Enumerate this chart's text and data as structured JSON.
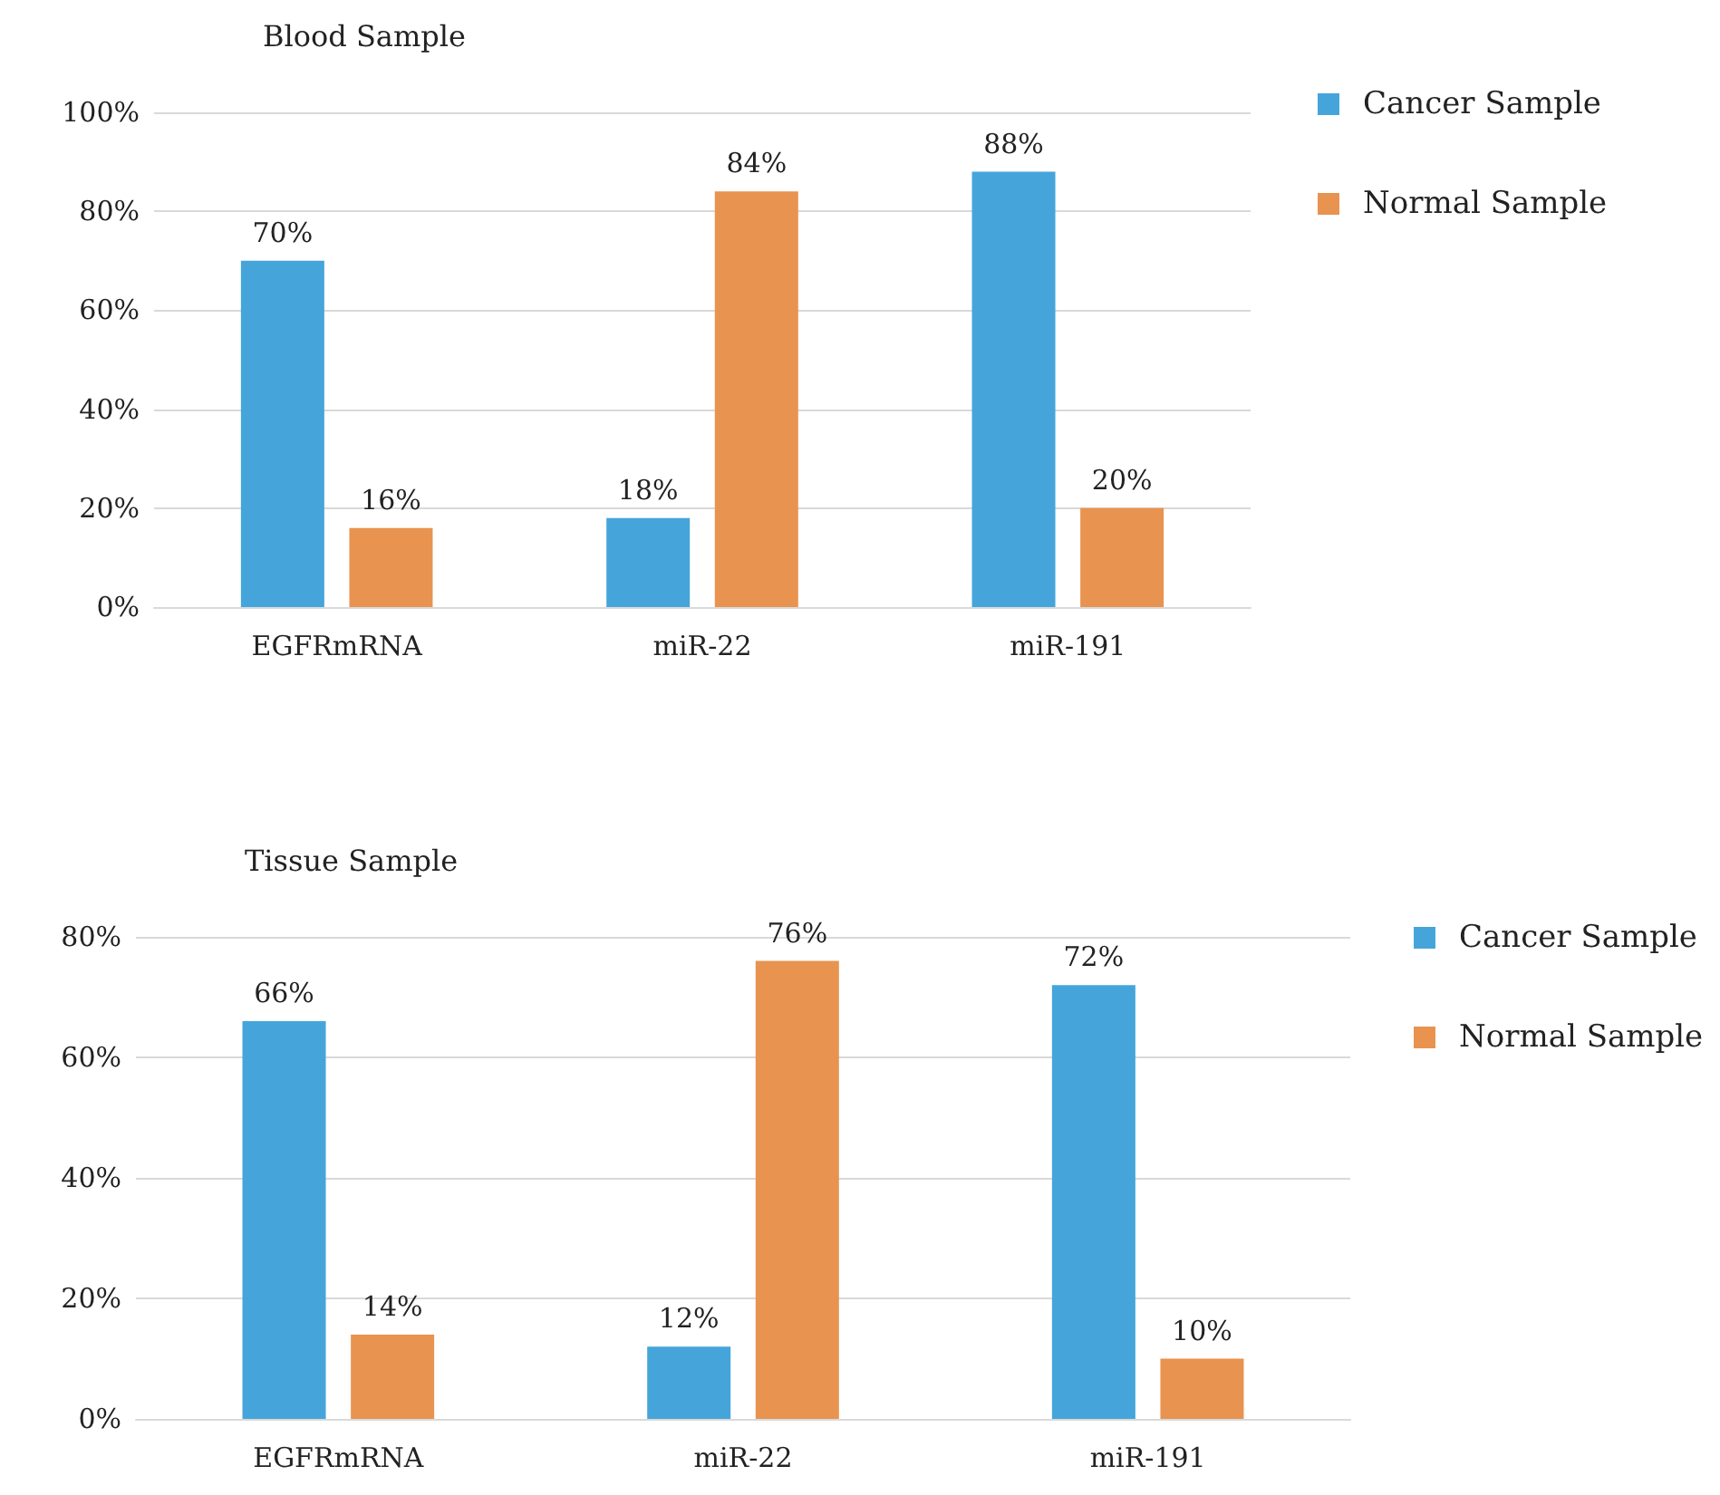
{
  "chart_data": [
    {
      "type": "bar",
      "title": "Blood Sample",
      "categories": [
        "EGFRmRNA",
        "miR-22",
        "miR-191"
      ],
      "series": [
        {
          "name": "Cancer Sample",
          "color": "#45a5da",
          "values": [
            70,
            18,
            88
          ],
          "value_labels": [
            "70%",
            "18%",
            "88%"
          ]
        },
        {
          "name": "Normal Sample",
          "color": "#e89350",
          "values": [
            16,
            84,
            20
          ],
          "value_labels": [
            "16%",
            "84%",
            "20%"
          ]
        }
      ],
      "ylim": [
        0,
        100
      ],
      "yticks": [
        {
          "value": 0,
          "label": "0%"
        },
        {
          "value": 20,
          "label": "20%"
        },
        {
          "value": 40,
          "label": "40%"
        },
        {
          "value": 60,
          "label": "60%"
        },
        {
          "value": 80,
          "label": "80%"
        },
        {
          "value": 100,
          "label": "100%"
        }
      ],
      "grid": "y",
      "legend": "top right"
    },
    {
      "type": "bar",
      "title": "Tissue Sample",
      "categories": [
        "EGFRmRNA",
        "miR-22",
        "miR-191"
      ],
      "series": [
        {
          "name": "Cancer Sample",
          "color": "#45a5da",
          "values": [
            66,
            12,
            72
          ],
          "value_labels": [
            "66%",
            "12%",
            "72%"
          ]
        },
        {
          "name": "Normal Sample",
          "color": "#e89350",
          "values": [
            14,
            76,
            10
          ],
          "value_labels": [
            "14%",
            "76%",
            "10%"
          ]
        }
      ],
      "ylim": [
        0,
        80
      ],
      "yticks": [
        {
          "value": 0,
          "label": "0%"
        },
        {
          "value": 20,
          "label": "20%"
        },
        {
          "value": 40,
          "label": "40%"
        },
        {
          "value": 60,
          "label": "60%"
        },
        {
          "value": 80,
          "label": "80%"
        }
      ],
      "grid": "y",
      "legend": "top right"
    }
  ]
}
